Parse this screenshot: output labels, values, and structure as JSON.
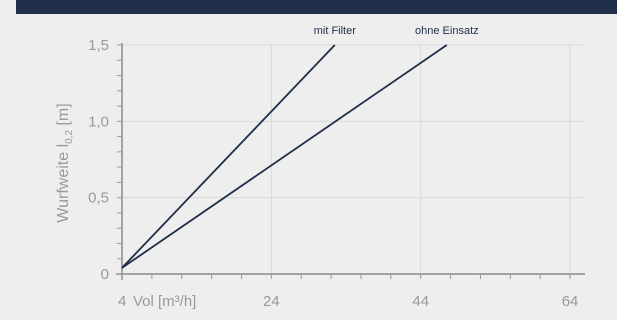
{
  "chart_data": {
    "type": "line",
    "title": "",
    "xlabel": "Vol [m³/h]",
    "ylabel": "Wurfweite l",
    "ylabel_sub": "0,2",
    "ylabel_unit": "[m]",
    "xlim": [
      4,
      66
    ],
    "ylim": [
      0,
      1.5
    ],
    "x_ticks": [
      4,
      24,
      44,
      64
    ],
    "x_tick_labels": [
      "4",
      "24",
      "44",
      "64"
    ],
    "y_ticks": [
      0,
      0.5,
      1.0,
      1.5
    ],
    "y_tick_labels": [
      "0",
      "0,5",
      "1,0",
      "1,5"
    ],
    "grid": true,
    "series": [
      {
        "name": "mit Filter",
        "color": "#1f2f4a",
        "points": [
          [
            4,
            0.04
          ],
          [
            32.5,
            1.5
          ]
        ]
      },
      {
        "name": "ohne Einsatz",
        "color": "#1f2f4a",
        "points": [
          [
            4,
            0.04
          ],
          [
            47.5,
            1.5
          ]
        ]
      }
    ]
  }
}
